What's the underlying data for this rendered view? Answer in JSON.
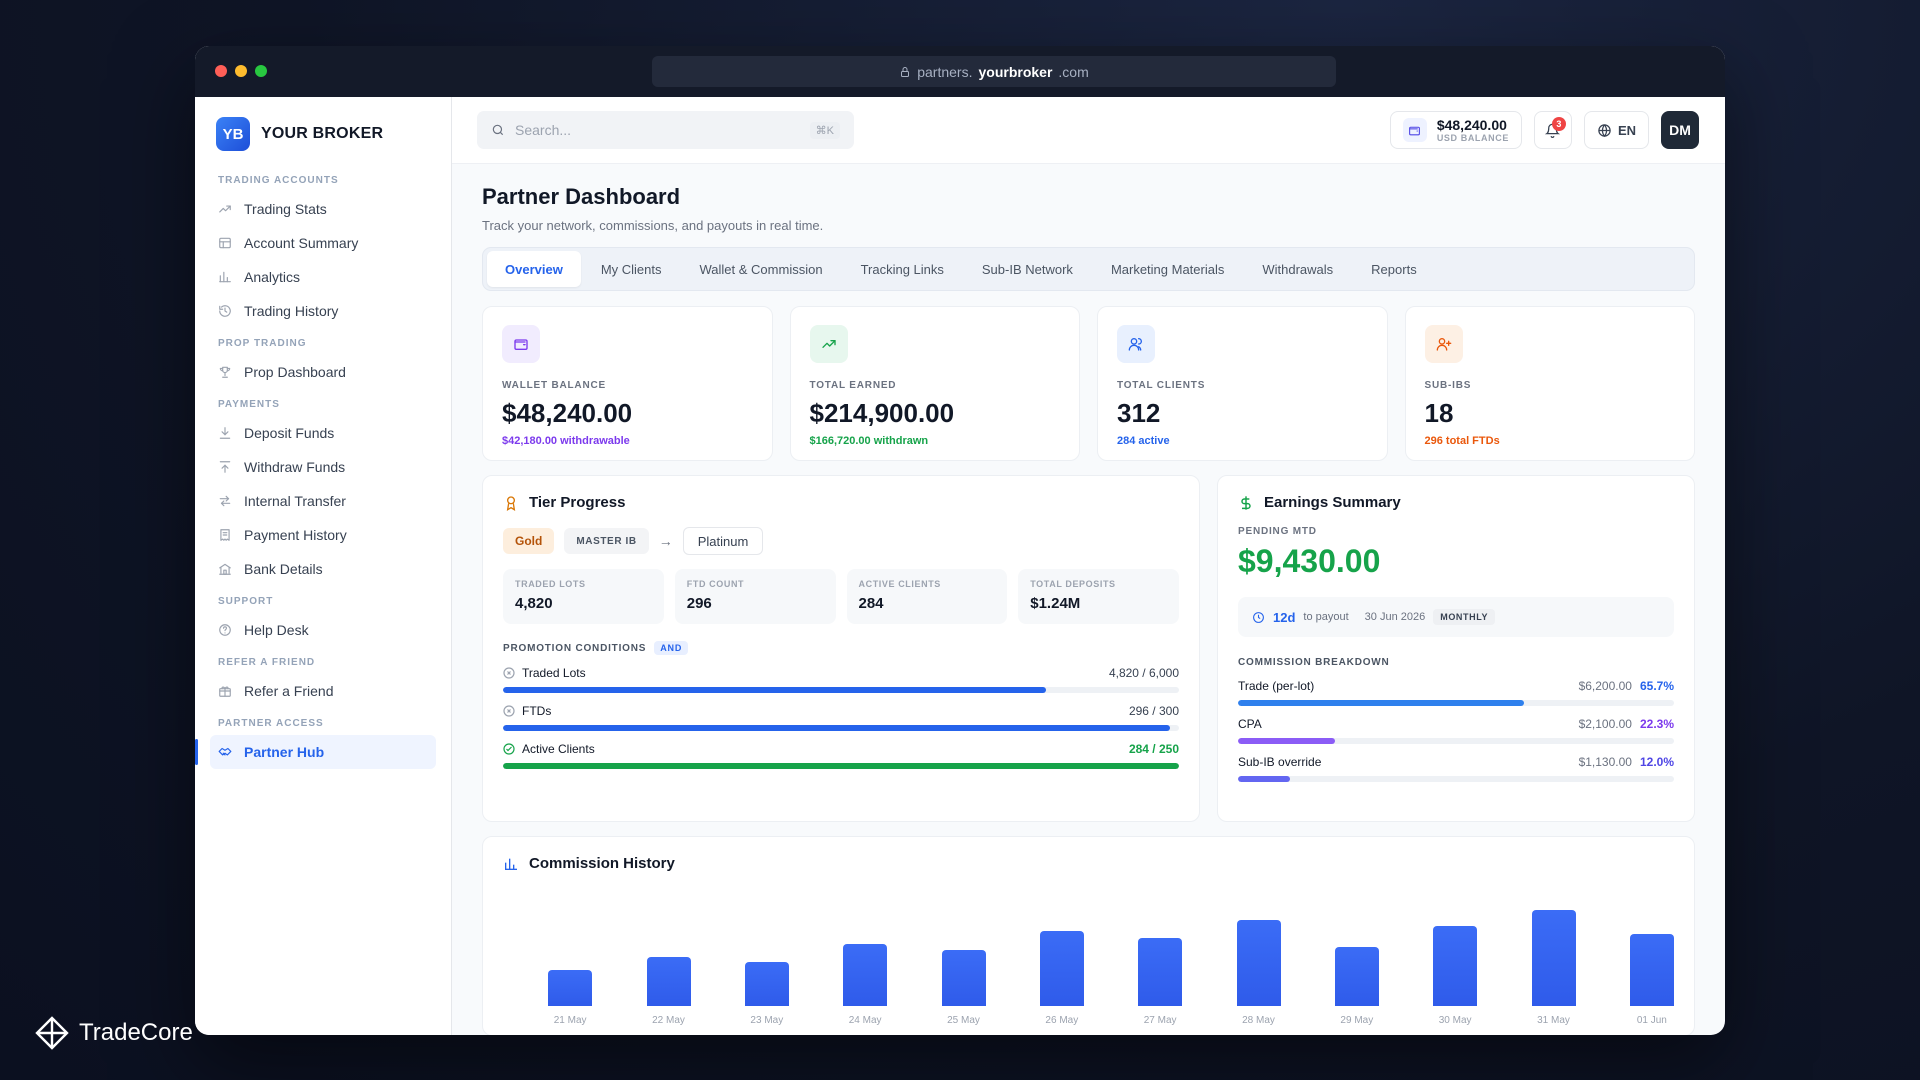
{
  "browser": {
    "url_prefix": "partners.",
    "url_host": "yourbroker",
    "url_suffix": ".com"
  },
  "brand": {
    "logo": "YB",
    "name": "YOUR BROKER"
  },
  "sidebar": {
    "sections": [
      {
        "title": "TRADING ACCOUNTS",
        "items": [
          {
            "label": "Trading Stats",
            "icon": "trending-up-icon"
          },
          {
            "label": "Account Summary",
            "icon": "table-icon"
          },
          {
            "label": "Analytics",
            "icon": "bar-chart-icon"
          },
          {
            "label": "Trading History",
            "icon": "history-icon"
          }
        ]
      },
      {
        "title": "PROP TRADING",
        "items": [
          {
            "label": "Prop Dashboard",
            "icon": "trophy-icon"
          }
        ]
      },
      {
        "title": "PAYMENTS",
        "items": [
          {
            "label": "Deposit Funds",
            "icon": "download-icon"
          },
          {
            "label": "Withdraw Funds",
            "icon": "upload-icon"
          },
          {
            "label": "Internal Transfer",
            "icon": "transfer-icon"
          },
          {
            "label": "Payment History",
            "icon": "receipt-icon"
          },
          {
            "label": "Bank Details",
            "icon": "bank-icon"
          }
        ]
      },
      {
        "title": "SUPPORT",
        "items": [
          {
            "label": "Help Desk",
            "icon": "help-icon"
          }
        ]
      },
      {
        "title": "REFER A FRIEND",
        "items": [
          {
            "label": "Refer a Friend",
            "icon": "gift-icon"
          }
        ]
      },
      {
        "title": "PARTNER ACCESS",
        "items": [
          {
            "label": "Partner Hub",
            "icon": "handshake-icon",
            "active": true
          }
        ]
      }
    ]
  },
  "topbar": {
    "search_placeholder": "Search...",
    "search_shortcut": "⌘K",
    "balance": "$48,240.00",
    "balance_label": "USD BALANCE",
    "notifications": "3",
    "language": "EN",
    "avatar": "DM"
  },
  "page": {
    "title": "Partner Dashboard",
    "subtitle": "Track your network, commissions, and payouts in real time."
  },
  "tabs": [
    {
      "label": "Overview",
      "active": true
    },
    {
      "label": "My Clients"
    },
    {
      "label": "Wallet & Commission"
    },
    {
      "label": "Tracking Links"
    },
    {
      "label": "Sub-IB Network"
    },
    {
      "label": "Marketing Materials"
    },
    {
      "label": "Withdrawals"
    },
    {
      "label": "Reports"
    }
  ],
  "stats": [
    {
      "label": "WALLET BALANCE",
      "value": "$48,240.00",
      "note": "$42,180.00 withdrawable",
      "note_color": "#7c3aed",
      "icon": "wallet-icon",
      "icon_bg": "#f1ecfe",
      "icon_color": "#7c3aed"
    },
    {
      "label": "TOTAL EARNED",
      "value": "$214,900.00",
      "note": "$166,720.00 withdrawn",
      "note_color": "#16a34a",
      "icon": "trending-up-icon",
      "icon_bg": "#e7f7ee",
      "icon_color": "#16a34a"
    },
    {
      "label": "TOTAL CLIENTS",
      "value": "312",
      "note": "284 active",
      "note_color": "#2563eb",
      "icon": "users-icon",
      "icon_bg": "#e8f0fe",
      "icon_color": "#2563eb"
    },
    {
      "label": "SUB-IBS",
      "value": "18",
      "note": "296 total FTDs",
      "note_color": "#ea580c",
      "icon": "user-plus-icon",
      "icon_bg": "#fdf0e4",
      "icon_color": "#ea580c"
    }
  ],
  "tier": {
    "title": "Tier Progress",
    "current": "Gold",
    "role": "MASTER IB",
    "arrow": "→",
    "next": "Platinum",
    "metrics": [
      {
        "label": "TRADED LOTS",
        "value": "4,820"
      },
      {
        "label": "FTD COUNT",
        "value": "296"
      },
      {
        "label": "ACTIVE CLIENTS",
        "value": "284"
      },
      {
        "label": "TOTAL DEPOSITS",
        "value": "$1.24M"
      }
    ],
    "conditions_label": "PROMOTION CONDITIONS",
    "conditions_logic": "AND",
    "conditions": [
      {
        "label": "Traded Lots",
        "value": "4,820 / 6,000",
        "progress": 0.803,
        "met": false,
        "color": "#2563eb"
      },
      {
        "label": "FTDs",
        "value": "296 / 300",
        "progress": 0.987,
        "met": false,
        "color": "#2563eb"
      },
      {
        "label": "Active Clients",
        "value": "284 / 250",
        "progress": 1.0,
        "met": true,
        "color": "#16a34a"
      }
    ]
  },
  "earnings": {
    "title": "Earnings Summary",
    "pending_label": "PENDING MTD",
    "pending_value": "$9,430.00",
    "payout_days": "12d",
    "payout_text": "to payout",
    "payout_date": "30 Jun 2026",
    "payout_cycle": "MONTHLY",
    "breakdown_label": "COMMISSION BREAKDOWN",
    "breakdown": [
      {
        "label": "Trade (per-lot)",
        "amount": "$6,200.00",
        "pct": "65.7%",
        "progress": 0.657,
        "color": "#2f80ed",
        "pct_color": "#2563eb"
      },
      {
        "label": "CPA",
        "amount": "$2,100.00",
        "pct": "22.3%",
        "progress": 0.223,
        "color": "#8b5cf6",
        "pct_color": "#7c3aed"
      },
      {
        "label": "Sub-IB override",
        "amount": "$1,130.00",
        "pct": "12.0%",
        "progress": 0.12,
        "color": "#6366f1",
        "pct_color": "#4f46e5"
      }
    ]
  },
  "history": {
    "title": "Commission History"
  },
  "chart_data": {
    "type": "bar",
    "title": "Commission History",
    "categories": [
      "21 May",
      "22 May",
      "23 May",
      "24 May",
      "25 May",
      "26 May",
      "27 May",
      "28 May",
      "29 May",
      "30 May",
      "31 May",
      "01 Jun"
    ],
    "values": [
      32,
      44,
      39,
      55,
      50,
      67,
      61,
      77,
      53,
      71,
      86,
      64
    ],
    "ylim": [
      0,
      100
    ],
    "grid": false,
    "bar_color": "#3366f0"
  },
  "footer_brand": "TradeCore"
}
